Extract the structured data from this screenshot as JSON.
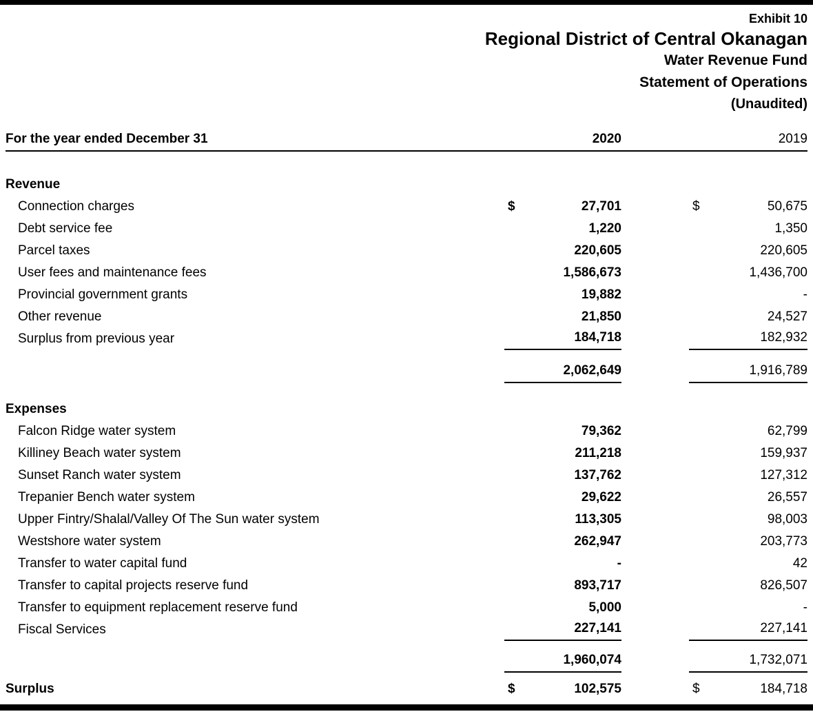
{
  "doc": {
    "exhibit": "Exhibit 10",
    "org": "Regional District of Central Okanagan",
    "fund": "Water Revenue Fund",
    "statement": "Statement of Operations",
    "unaudited": "(Unaudited)",
    "period_label": "For the year ended December 31",
    "col_2020": "2020",
    "col_2019": "2019"
  },
  "revenue": {
    "title": "Revenue",
    "rows": [
      {
        "label": "Connection charges",
        "d2020": "$",
        "v2020": "27,701",
        "d2019": "$",
        "v2019": "50,675"
      },
      {
        "label": "Debt service fee",
        "v2020": "1,220",
        "v2019": "1,350"
      },
      {
        "label": "Parcel taxes",
        "v2020": "220,605",
        "v2019": "220,605"
      },
      {
        "label": "User fees and maintenance fees",
        "v2020": "1,586,673",
        "v2019": "1,436,700"
      },
      {
        "label": "Provincial government grants",
        "v2020": "19,882",
        "v2019": "-"
      },
      {
        "label": "Other revenue",
        "v2020": "21,850",
        "v2019": "24,527"
      },
      {
        "label": "Surplus from previous year",
        "v2020": "184,718",
        "v2019": "182,932"
      }
    ],
    "total_2020": "2,062,649",
    "total_2019": "1,916,789"
  },
  "expenses": {
    "title": "Expenses",
    "rows": [
      {
        "label": "Falcon Ridge water system",
        "v2020": "79,362",
        "v2019": "62,799"
      },
      {
        "label": "Killiney Beach water system",
        "v2020": "211,218",
        "v2019": "159,937"
      },
      {
        "label": "Sunset Ranch water system",
        "v2020": "137,762",
        "v2019": "127,312"
      },
      {
        "label": "Trepanier Bench water system",
        "v2020": "29,622",
        "v2019": "26,557"
      },
      {
        "label": "Upper Fintry/Shalal/Valley Of The Sun water system",
        "v2020": "113,305",
        "v2019": "98,003"
      },
      {
        "label": "Westshore water system",
        "v2020": "262,947",
        "v2019": "203,773"
      },
      {
        "label": "Transfer to water capital fund",
        "v2020": "-",
        "v2019": "42"
      },
      {
        "label": "Transfer to capital projects reserve fund",
        "v2020": "893,717",
        "v2019": "826,507"
      },
      {
        "label": "Transfer to equipment replacement reserve fund",
        "v2020": "5,000",
        "v2019": "-"
      },
      {
        "label": "Fiscal Services",
        "v2020": "227,141",
        "v2019": "227,141"
      }
    ],
    "total_2020": "1,960,074",
    "total_2019": "1,732,071"
  },
  "surplus": {
    "label": "Surplus",
    "d2020": "$",
    "v2020": "102,575",
    "d2019": "$",
    "v2019": "184,718"
  }
}
